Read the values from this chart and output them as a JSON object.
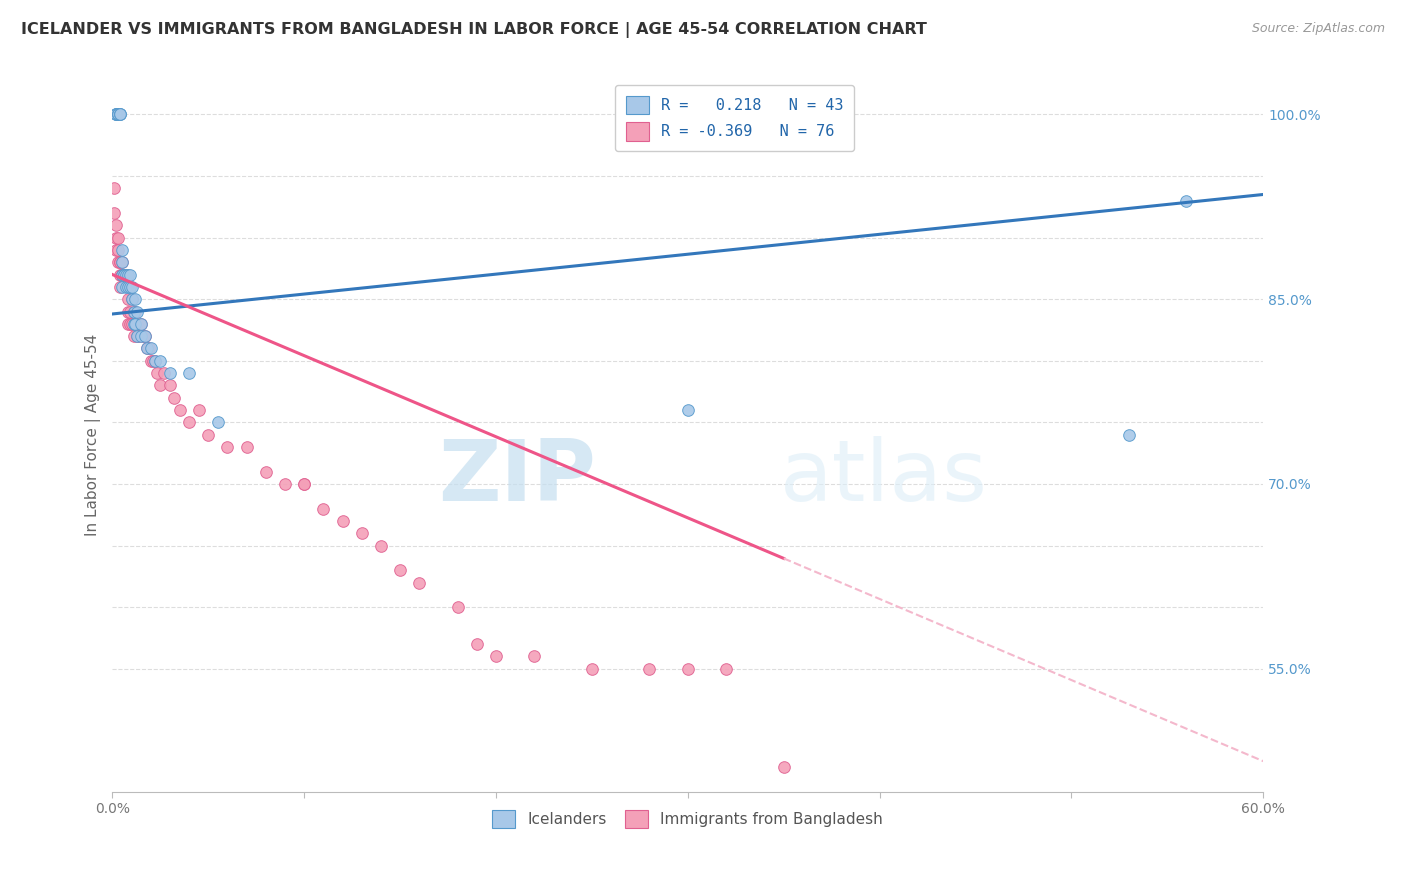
{
  "title": "ICELANDER VS IMMIGRANTS FROM BANGLADESH IN LABOR FORCE | AGE 45-54 CORRELATION CHART",
  "source": "Source: ZipAtlas.com",
  "ylabel": "In Labor Force | Age 45-54",
  "xmin": 0.0,
  "xmax": 0.6,
  "ymin": 0.45,
  "ymax": 1.03,
  "x_ticks": [
    0.0,
    0.1,
    0.2,
    0.3,
    0.4,
    0.5,
    0.6
  ],
  "x_tick_labels": [
    "0.0%",
    "",
    "",
    "",
    "",
    "",
    "60.0%"
  ],
  "y_ticks": [
    0.55,
    0.6,
    0.65,
    0.7,
    0.75,
    0.8,
    0.85,
    0.9,
    0.95,
    1.0
  ],
  "y_tick_labels_right": [
    "55.0%",
    "",
    "",
    "70.0%",
    "",
    "",
    "85.0%",
    "",
    "",
    "100.0%"
  ],
  "legend_icelander_label": "R =   0.218   N = 43",
  "legend_bangladesh_label": "R = -0.369   N = 76",
  "legend_bottom_icelander": "Icelanders",
  "legend_bottom_bangladesh": "Immigrants from Bangladesh",
  "watermark_zip": "ZIP",
  "watermark_atlas": "atlas",
  "blue_color": "#a8c8e8",
  "pink_color": "#f4a0b8",
  "blue_edge": "#5599cc",
  "pink_edge": "#e06090",
  "trend_blue_color": "#3377bb",
  "trend_pink_color": "#ee5588",
  "trend_pink_dashed_color": "#f4b8cc",
  "icelanders_x": [
    0.002,
    0.002,
    0.002,
    0.002,
    0.003,
    0.003,
    0.003,
    0.004,
    0.004,
    0.004,
    0.005,
    0.005,
    0.005,
    0.005,
    0.006,
    0.006,
    0.007,
    0.007,
    0.008,
    0.008,
    0.009,
    0.009,
    0.01,
    0.01,
    0.011,
    0.011,
    0.012,
    0.012,
    0.013,
    0.013,
    0.015,
    0.015,
    0.017,
    0.018,
    0.02,
    0.022,
    0.025,
    0.03,
    0.04,
    0.055,
    0.3,
    0.53,
    0.56
  ],
  "icelanders_y": [
    1.0,
    1.0,
    1.0,
    1.0,
    1.0,
    1.0,
    1.0,
    1.0,
    1.0,
    1.0,
    0.89,
    0.88,
    0.87,
    0.86,
    0.87,
    0.87,
    0.87,
    0.86,
    0.86,
    0.87,
    0.87,
    0.86,
    0.85,
    0.86,
    0.83,
    0.84,
    0.85,
    0.83,
    0.82,
    0.84,
    0.83,
    0.82,
    0.82,
    0.81,
    0.81,
    0.8,
    0.8,
    0.79,
    0.79,
    0.75,
    0.76,
    0.74,
    0.93
  ],
  "bangladesh_x": [
    0.001,
    0.001,
    0.002,
    0.002,
    0.002,
    0.003,
    0.003,
    0.003,
    0.004,
    0.004,
    0.004,
    0.004,
    0.005,
    0.005,
    0.005,
    0.005,
    0.005,
    0.006,
    0.006,
    0.006,
    0.006,
    0.007,
    0.007,
    0.007,
    0.008,
    0.008,
    0.008,
    0.009,
    0.009,
    0.01,
    0.01,
    0.011,
    0.011,
    0.012,
    0.012,
    0.013,
    0.013,
    0.014,
    0.015,
    0.016,
    0.017,
    0.018,
    0.019,
    0.02,
    0.021,
    0.022,
    0.023,
    0.025,
    0.027,
    0.03,
    0.032,
    0.035,
    0.04,
    0.045,
    0.05,
    0.06,
    0.07,
    0.08,
    0.09,
    0.1,
    0.1,
    0.11,
    0.12,
    0.13,
    0.14,
    0.15,
    0.16,
    0.18,
    0.19,
    0.2,
    0.22,
    0.25,
    0.28,
    0.3,
    0.32,
    0.35
  ],
  "bangladesh_y": [
    0.94,
    0.92,
    0.9,
    0.91,
    0.89,
    0.9,
    0.89,
    0.88,
    0.88,
    0.88,
    0.87,
    0.86,
    0.88,
    0.87,
    0.87,
    0.87,
    0.87,
    0.87,
    0.87,
    0.87,
    0.87,
    0.87,
    0.87,
    0.87,
    0.85,
    0.84,
    0.83,
    0.84,
    0.83,
    0.85,
    0.83,
    0.84,
    0.82,
    0.84,
    0.83,
    0.83,
    0.82,
    0.82,
    0.83,
    0.82,
    0.82,
    0.81,
    0.81,
    0.8,
    0.8,
    0.8,
    0.79,
    0.78,
    0.79,
    0.78,
    0.77,
    0.76,
    0.75,
    0.76,
    0.74,
    0.73,
    0.73,
    0.71,
    0.7,
    0.7,
    0.7,
    0.68,
    0.67,
    0.66,
    0.65,
    0.63,
    0.62,
    0.6,
    0.57,
    0.56,
    0.56,
    0.55,
    0.55,
    0.55,
    0.55,
    0.47
  ],
  "trend_blue_x0": 0.0,
  "trend_blue_x1": 0.6,
  "trend_blue_y0": 0.838,
  "trend_blue_y1": 0.935,
  "trend_pink_x0": 0.0,
  "trend_pink_x1": 0.6,
  "trend_pink_y0": 0.87,
  "trend_pink_y1": 0.475,
  "trend_solid_end": 0.35
}
